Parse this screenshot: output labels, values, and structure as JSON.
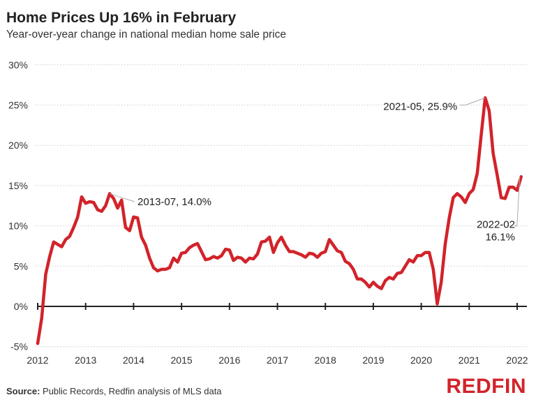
{
  "title": "Home Prices Up 16% in February",
  "subtitle": "Year-over-year change in national median home sale price",
  "source_label": "Source:",
  "source_text": " Public Records, Redfin analysis of MLS data",
  "logo": "REDFIN",
  "colors": {
    "line": "#d2232a",
    "grid": "#cccccc",
    "axis": "#222222",
    "leader": "#aaaaaa"
  },
  "chart_data": {
    "type": "line",
    "title": "Home Prices Up 16% in February",
    "xlabel": "",
    "ylabel": "",
    "ylim": [
      -5,
      30
    ],
    "yticks": [
      -5,
      0,
      5,
      10,
      15,
      20,
      25,
      30
    ],
    "ytick_labels": [
      "-5%",
      "0%",
      "5%",
      "10%",
      "15%",
      "20%",
      "25%",
      "30%"
    ],
    "xticks": [
      2012,
      2013,
      2014,
      2015,
      2016,
      2017,
      2018,
      2019,
      2020,
      2021,
      2022
    ],
    "xtick_labels": [
      "2012",
      "2013",
      "2014",
      "2015",
      "2016",
      "2017",
      "2018",
      "2019",
      "2020",
      "2021",
      "2022"
    ],
    "grid": true,
    "start": "2012-01",
    "end": "2022-02",
    "frequency": "monthly",
    "values": [
      -4.6,
      -1.5,
      4.0,
      6.2,
      8.0,
      7.7,
      7.4,
      8.3,
      8.7,
      9.8,
      11.1,
      13.6,
      12.8,
      13.0,
      12.9,
      12.0,
      11.8,
      12.5,
      14.0,
      13.4,
      12.2,
      13.2,
      9.8,
      9.4,
      11.1,
      11.0,
      8.6,
      7.6,
      6.0,
      4.8,
      4.4,
      4.6,
      4.6,
      4.8,
      6.0,
      5.5,
      6.6,
      6.7,
      7.3,
      7.6,
      7.8,
      6.8,
      5.8,
      5.9,
      6.2,
      6.0,
      6.3,
      7.1,
      7.0,
      5.7,
      6.1,
      6.0,
      5.5,
      6.0,
      5.9,
      6.5,
      8.0,
      8.1,
      8.6,
      6.7,
      7.9,
      8.6,
      7.6,
      6.8,
      6.8,
      6.6,
      6.4,
      6.1,
      6.6,
      6.5,
      6.1,
      6.6,
      6.8,
      8.3,
      7.6,
      6.9,
      6.7,
      5.6,
      5.3,
      4.6,
      3.4,
      3.4,
      3.0,
      2.4,
      3.0,
      2.5,
      2.2,
      3.2,
      3.6,
      3.4,
      4.1,
      4.2,
      5.0,
      5.8,
      5.5,
      6.3,
      6.3,
      6.7,
      6.7,
      4.6,
      0.3,
      3.0,
      7.8,
      11.0,
      13.5,
      14.0,
      13.6,
      12.9,
      14.0,
      14.5,
      16.5,
      21.3,
      25.9,
      24.3,
      19.0,
      16.3,
      13.5,
      13.4,
      14.8,
      14.8,
      14.4,
      16.1
    ],
    "annotations": [
      {
        "date": "2013-07",
        "value": 14.0,
        "label": "2013-07, 14.0%"
      },
      {
        "date": "2021-05",
        "value": 25.9,
        "label": "2021-05, 25.9%"
      },
      {
        "date": "2022-02",
        "value": 16.1,
        "label": "2022-02",
        "label2": "16.1%"
      }
    ]
  }
}
